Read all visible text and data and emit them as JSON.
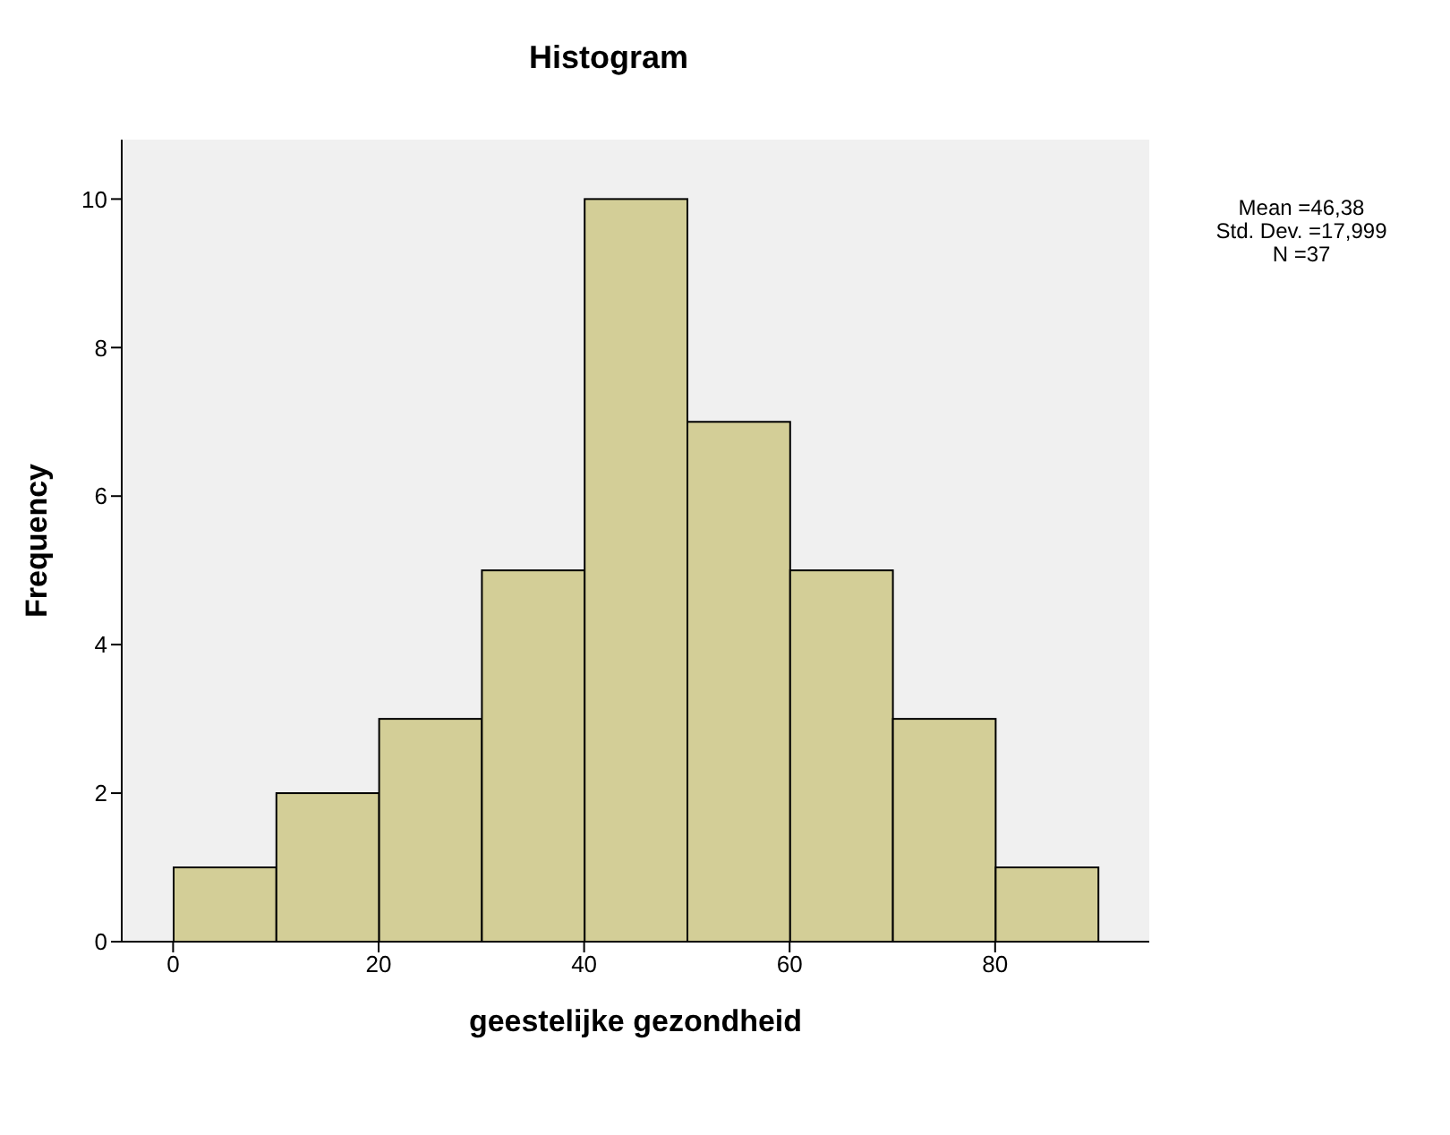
{
  "chart_data": {
    "type": "histogram",
    "title": "Histogram",
    "xlabel": "geestelijke gezondheid",
    "ylabel": "Frequency",
    "bins": [
      0,
      10,
      20,
      30,
      40,
      50,
      60,
      70,
      80,
      90
    ],
    "values": [
      1,
      2,
      3,
      5,
      10,
      7,
      5,
      3,
      1
    ],
    "color": "#d3ce97",
    "xlim": [
      -5,
      95
    ],
    "xticks": [
      0,
      20,
      40,
      60,
      80
    ],
    "ylim": [
      0,
      10.8
    ],
    "yticks": [
      0,
      2,
      4,
      6,
      8,
      10
    ],
    "annotations": [
      "Mean =46,38",
      "Std. Dev. =17,999",
      "N =37"
    ]
  }
}
